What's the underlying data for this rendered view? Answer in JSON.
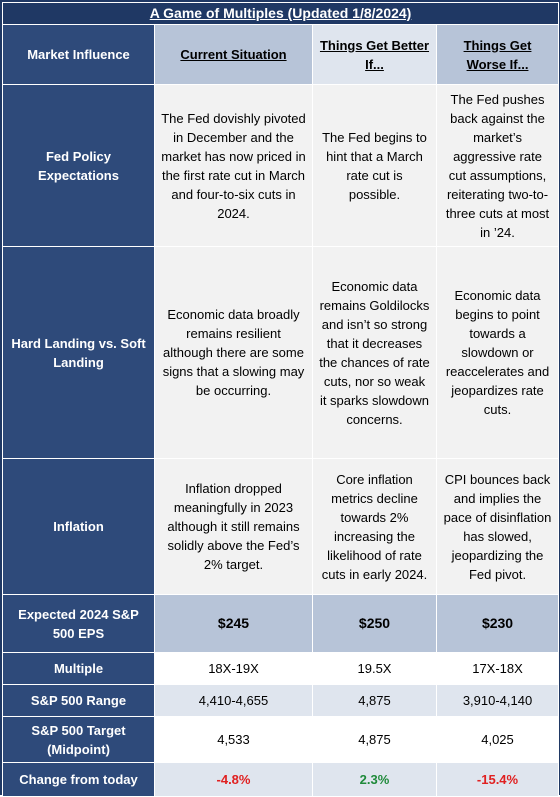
{
  "title": "A Game of Multiples (Updated 1/8/2024)",
  "headers": {
    "col0": "Market Influence",
    "col1": "Current Situation",
    "col2": "Things Get Better If...",
    "col3": "Things Get Worse If..."
  },
  "rows": [
    {
      "label": "Fed Policy Expectations",
      "current": "The Fed dovishly pivoted in December and the market has now priced in the first rate cut in March and four-to-six cuts in 2024.",
      "better": "The Fed begins to hint that a March rate cut is possible.",
      "worse": "The Fed pushes back against the market’s aggressive rate cut assumptions, reiterating two-to-three cuts at most in ’24."
    },
    {
      "label": "Hard Landing vs. Soft Landing",
      "current": "Economic data broadly remains resilient although there are some signs that a slowing may be occurring.",
      "better": "Economic data remains Goldilocks and isn’t so strong that it decreases the chances of rate cuts, nor so weak it sparks slowdown concerns.",
      "worse": "Economic data begins to point towards a slowdown or reaccelerates and jeopardizes rate cuts."
    },
    {
      "label": "Inflation",
      "current": "Inflation dropped meaningfully in 2023 although it still remains solidly above the Fed’s 2% target.",
      "better": "Core inflation metrics decline towards 2% increasing the likelihood of rate cuts in early 2024.",
      "worse": "CPI bounces back and implies the pace of disinflation has slowed, jeopardizing the Fed pivot."
    }
  ],
  "eps": {
    "label": "Expected 2024 S&P 500 EPS",
    "current": "$245",
    "better": "$250",
    "worse": "$230"
  },
  "multiple": {
    "label": "Multiple",
    "current": "18X-19X",
    "better": "19.5X",
    "worse": "17X-18X"
  },
  "range": {
    "label": "S&P 500 Range",
    "current": "4,410-4,655",
    "better": "4,875",
    "worse": "3,910-4,140"
  },
  "target": {
    "label": "S&P 500 Target (Midpoint)",
    "current": "4,533",
    "better": "4,875",
    "worse": "4,025"
  },
  "change": {
    "label": "Change from today",
    "current": "-4.8%",
    "better": "2.3%",
    "worse": "-15.4%"
  },
  "colors": {
    "dark_blue": "#1f3864",
    "label_blue": "#2e4a7a",
    "negative": "#e02020",
    "positive": "#1f8a3a"
  }
}
